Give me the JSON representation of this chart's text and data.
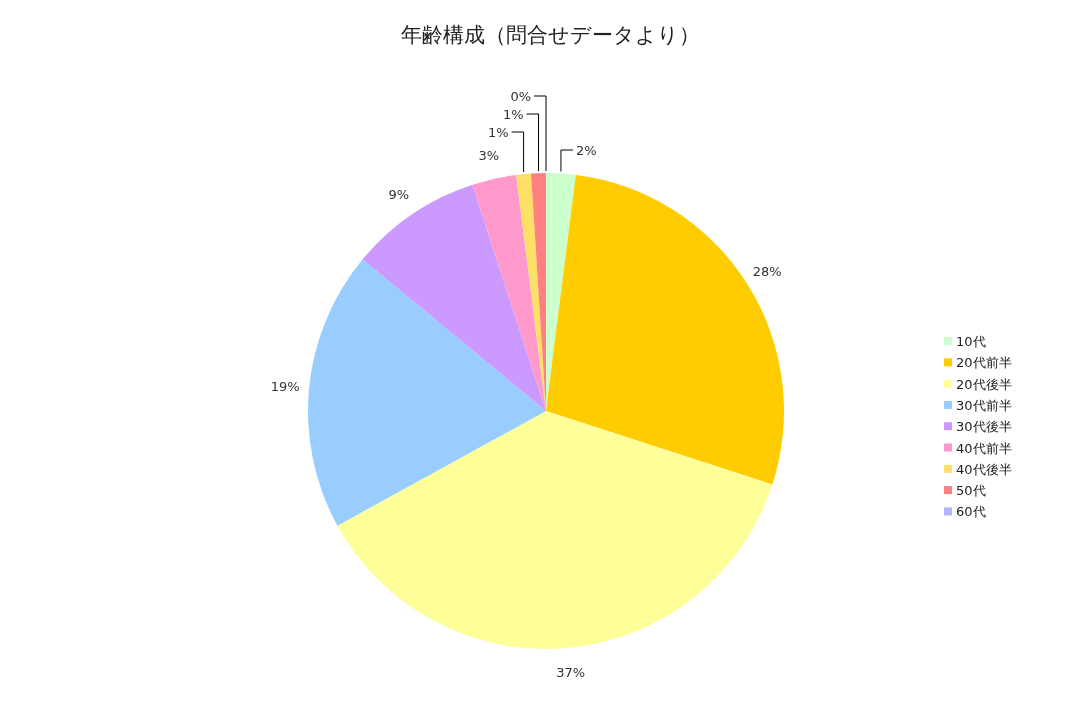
{
  "chart_data": {
    "type": "pie",
    "title": "年齢構成（問合せデータより）",
    "categories": [
      "10代",
      "20代前半",
      "20代後半",
      "30代前半",
      "30代後半",
      "40代前半",
      "40代後半",
      "50代",
      "60代"
    ],
    "values": [
      2,
      28,
      37,
      19,
      9,
      3,
      1,
      1,
      0
    ],
    "colors": [
      "#ccffcc",
      "#ffcc00",
      "#ffff99",
      "#99ccff",
      "#cc99ff",
      "#ff99cc",
      "#ffe066",
      "#ff8080",
      "#b3b3ff"
    ],
    "value_labels": [
      "2%",
      "28%",
      "37%",
      "19%",
      "9%",
      "3%",
      "1%",
      "1%",
      "0%"
    ],
    "legend": "right"
  }
}
